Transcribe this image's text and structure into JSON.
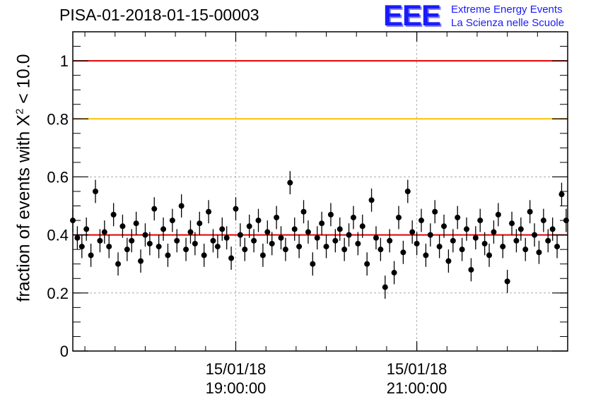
{
  "header": {
    "title": "PISA-01-2018-01-15-00003",
    "logo_mark": "EEE",
    "logo_line1": "Extreme Energy Events",
    "logo_line2": "La Scienza nelle Scuole"
  },
  "colors": {
    "red": "#e00000",
    "orange": "#ffc000",
    "markers": "#000000",
    "grid": "#a0a0a0",
    "logo": "#1a1aff"
  },
  "chart_data": {
    "type": "scatter",
    "title": "PISA-01-2018-01-15-00003",
    "ylabel_prefix": "fraction of events with",
    "ylabel_symbol": "X",
    "ylabel_exponent": "2",
    "ylabel_suffix": "< 10.0",
    "ylim": [
      0,
      1.1
    ],
    "yticks": [
      0,
      0.2,
      0.4,
      0.6,
      0.8,
      1
    ],
    "ytick_labels": [
      "0",
      "0.2",
      "0.4",
      "0.6",
      "0.8",
      "1"
    ],
    "xlim": [
      "17:12",
      "22:40"
    ],
    "xticks": [
      {
        "time": "19:00",
        "date_label": "15/01/18",
        "time_label": "19:00:00"
      },
      {
        "time": "21:00",
        "date_label": "15/01/18",
        "time_label": "21:00:00"
      }
    ],
    "grid": true,
    "reference_lines": [
      {
        "y": 1.0,
        "color": "#e00000"
      },
      {
        "y": 0.8,
        "color": "#ffc000"
      },
      {
        "y": 0.4,
        "color": "#e00000"
      }
    ],
    "series": [
      {
        "marker": "circle",
        "error_bar": 0.04,
        "x": [
          "17:12",
          "17:15",
          "17:18",
          "17:21",
          "17:24",
          "17:27",
          "17:30",
          "17:33",
          "17:36",
          "17:39",
          "17:42",
          "17:45",
          "17:48",
          "17:51",
          "17:54",
          "17:57",
          "18:00",
          "18:03",
          "18:06",
          "18:09",
          "18:12",
          "18:15",
          "18:18",
          "18:21",
          "18:24",
          "18:27",
          "18:30",
          "18:33",
          "18:36",
          "18:39",
          "18:42",
          "18:45",
          "18:48",
          "18:51",
          "18:54",
          "18:57",
          "19:00",
          "19:03",
          "19:06",
          "19:09",
          "19:12",
          "19:15",
          "19:18",
          "19:21",
          "19:24",
          "19:27",
          "19:30",
          "19:33",
          "19:36",
          "19:39",
          "19:42",
          "19:45",
          "19:48",
          "19:51",
          "19:54",
          "19:57",
          "20:00",
          "20:03",
          "20:06",
          "20:09",
          "20:12",
          "20:15",
          "20:18",
          "20:21",
          "20:24",
          "20:27",
          "20:30",
          "20:33",
          "20:36",
          "20:39",
          "20:42",
          "20:45",
          "20:48",
          "20:51",
          "20:54",
          "20:57",
          "21:00",
          "21:03",
          "21:06",
          "21:09",
          "21:12",
          "21:15",
          "21:18",
          "21:21",
          "21:24",
          "21:27",
          "21:30",
          "21:33",
          "21:36",
          "21:39",
          "21:42",
          "21:45",
          "21:48",
          "21:51",
          "21:54",
          "21:57",
          "22:00",
          "22:03",
          "22:06",
          "22:09",
          "22:12",
          "22:15",
          "22:18",
          "22:21",
          "22:24",
          "22:27",
          "22:30",
          "22:33",
          "22:36",
          "22:39"
        ],
        "y": [
          0.45,
          0.39,
          0.36,
          0.42,
          0.33,
          0.55,
          0.38,
          0.41,
          0.36,
          0.47,
          0.3,
          0.43,
          0.35,
          0.38,
          0.44,
          0.31,
          0.4,
          0.37,
          0.49,
          0.36,
          0.42,
          0.33,
          0.45,
          0.38,
          0.5,
          0.35,
          0.41,
          0.37,
          0.44,
          0.33,
          0.48,
          0.38,
          0.36,
          0.42,
          0.39,
          0.32,
          0.49,
          0.4,
          0.35,
          0.43,
          0.38,
          0.45,
          0.33,
          0.41,
          0.37,
          0.46,
          0.39,
          0.35,
          0.58,
          0.42,
          0.36,
          0.48,
          0.41,
          0.3,
          0.39,
          0.44,
          0.36,
          0.47,
          0.38,
          0.42,
          0.35,
          0.4,
          0.46,
          0.37,
          0.43,
          0.3,
          0.52,
          0.39,
          0.35,
          0.22,
          0.38,
          0.27,
          0.46,
          0.34,
          0.55,
          0.41,
          0.37,
          0.45,
          0.33,
          0.4,
          0.48,
          0.36,
          0.43,
          0.31,
          0.38,
          0.46,
          0.35,
          0.42,
          0.28,
          0.39,
          0.45,
          0.37,
          0.33,
          0.41,
          0.47,
          0.36,
          0.24,
          0.44,
          0.38,
          0.42,
          0.35,
          0.48,
          0.4,
          0.34,
          0.45,
          0.38,
          0.42,
          0.36,
          0.54,
          0.45
        ]
      }
    ]
  }
}
